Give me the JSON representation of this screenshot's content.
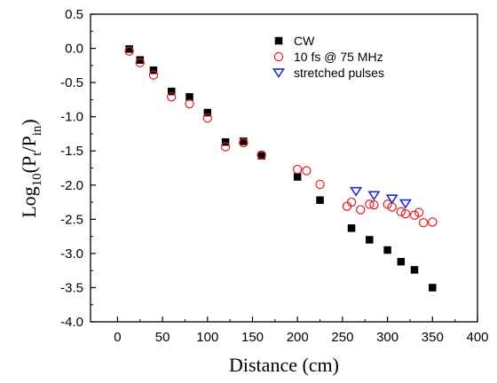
{
  "chart_data": {
    "type": "scatter",
    "xlabel": "Distance (cm)",
    "ylabel": {
      "prefix": "Log",
      "sub": "10",
      "open": "(P",
      "num_sub": "t",
      "slash": "/P",
      "den_sub": "in",
      "close": ")"
    },
    "xlim": [
      -30,
      400
    ],
    "ylim": [
      -4.0,
      0.5
    ],
    "xticks": [
      0,
      50,
      100,
      150,
      200,
      250,
      300,
      350,
      400
    ],
    "yticks": [
      0.5,
      0.0,
      -0.5,
      -1.0,
      -1.5,
      -2.0,
      -2.5,
      -3.0,
      -3.5,
      -4.0
    ],
    "xtick_labels": [
      "0",
      "50",
      "100",
      "150",
      "200",
      "250",
      "300",
      "350",
      "400"
    ],
    "ytick_labels": [
      "0.5",
      "0.0",
      "-0.5",
      "-1.0",
      "-1.5",
      "-2.0",
      "-2.5",
      "-3.0",
      "-3.5",
      "-4.0"
    ],
    "grid": false,
    "legend_position": "top-right",
    "series": [
      {
        "name": "CW",
        "marker": "filled-square",
        "color": "#000000",
        "x": [
          13,
          25,
          40,
          60,
          80,
          100,
          120,
          140,
          160,
          200,
          225,
          260,
          280,
          300,
          315,
          330,
          350
        ],
        "y": [
          -0.01,
          -0.17,
          -0.32,
          -0.63,
          -0.71,
          -0.94,
          -1.37,
          -1.36,
          -1.57,
          -1.88,
          -2.22,
          -2.63,
          -2.8,
          -2.95,
          -3.12,
          -3.24,
          -3.5
        ]
      },
      {
        "name": "10 fs  @ 75 MHz",
        "marker": "open-circle",
        "color": "#e41a1c",
        "x": [
          13,
          25,
          40,
          60,
          80,
          100,
          120,
          140,
          160,
          200,
          210,
          225,
          255,
          260,
          270,
          280,
          285,
          300,
          305,
          315,
          320,
          330,
          335,
          340,
          350
        ],
        "y": [
          -0.04,
          -0.21,
          -0.39,
          -0.71,
          -0.81,
          -1.02,
          -1.44,
          -1.38,
          -1.56,
          -1.77,
          -1.79,
          -1.99,
          -2.31,
          -2.25,
          -2.36,
          -2.28,
          -2.29,
          -2.28,
          -2.32,
          -2.39,
          -2.42,
          -2.44,
          -2.4,
          -2.55,
          -2.54
        ]
      },
      {
        "name": "stretched pulses",
        "marker": "open-triangle-down",
        "color": "#1f2bd8",
        "x": [
          265,
          285,
          305,
          320
        ],
        "y": [
          -2.09,
          -2.15,
          -2.2,
          -2.27
        ]
      }
    ]
  }
}
